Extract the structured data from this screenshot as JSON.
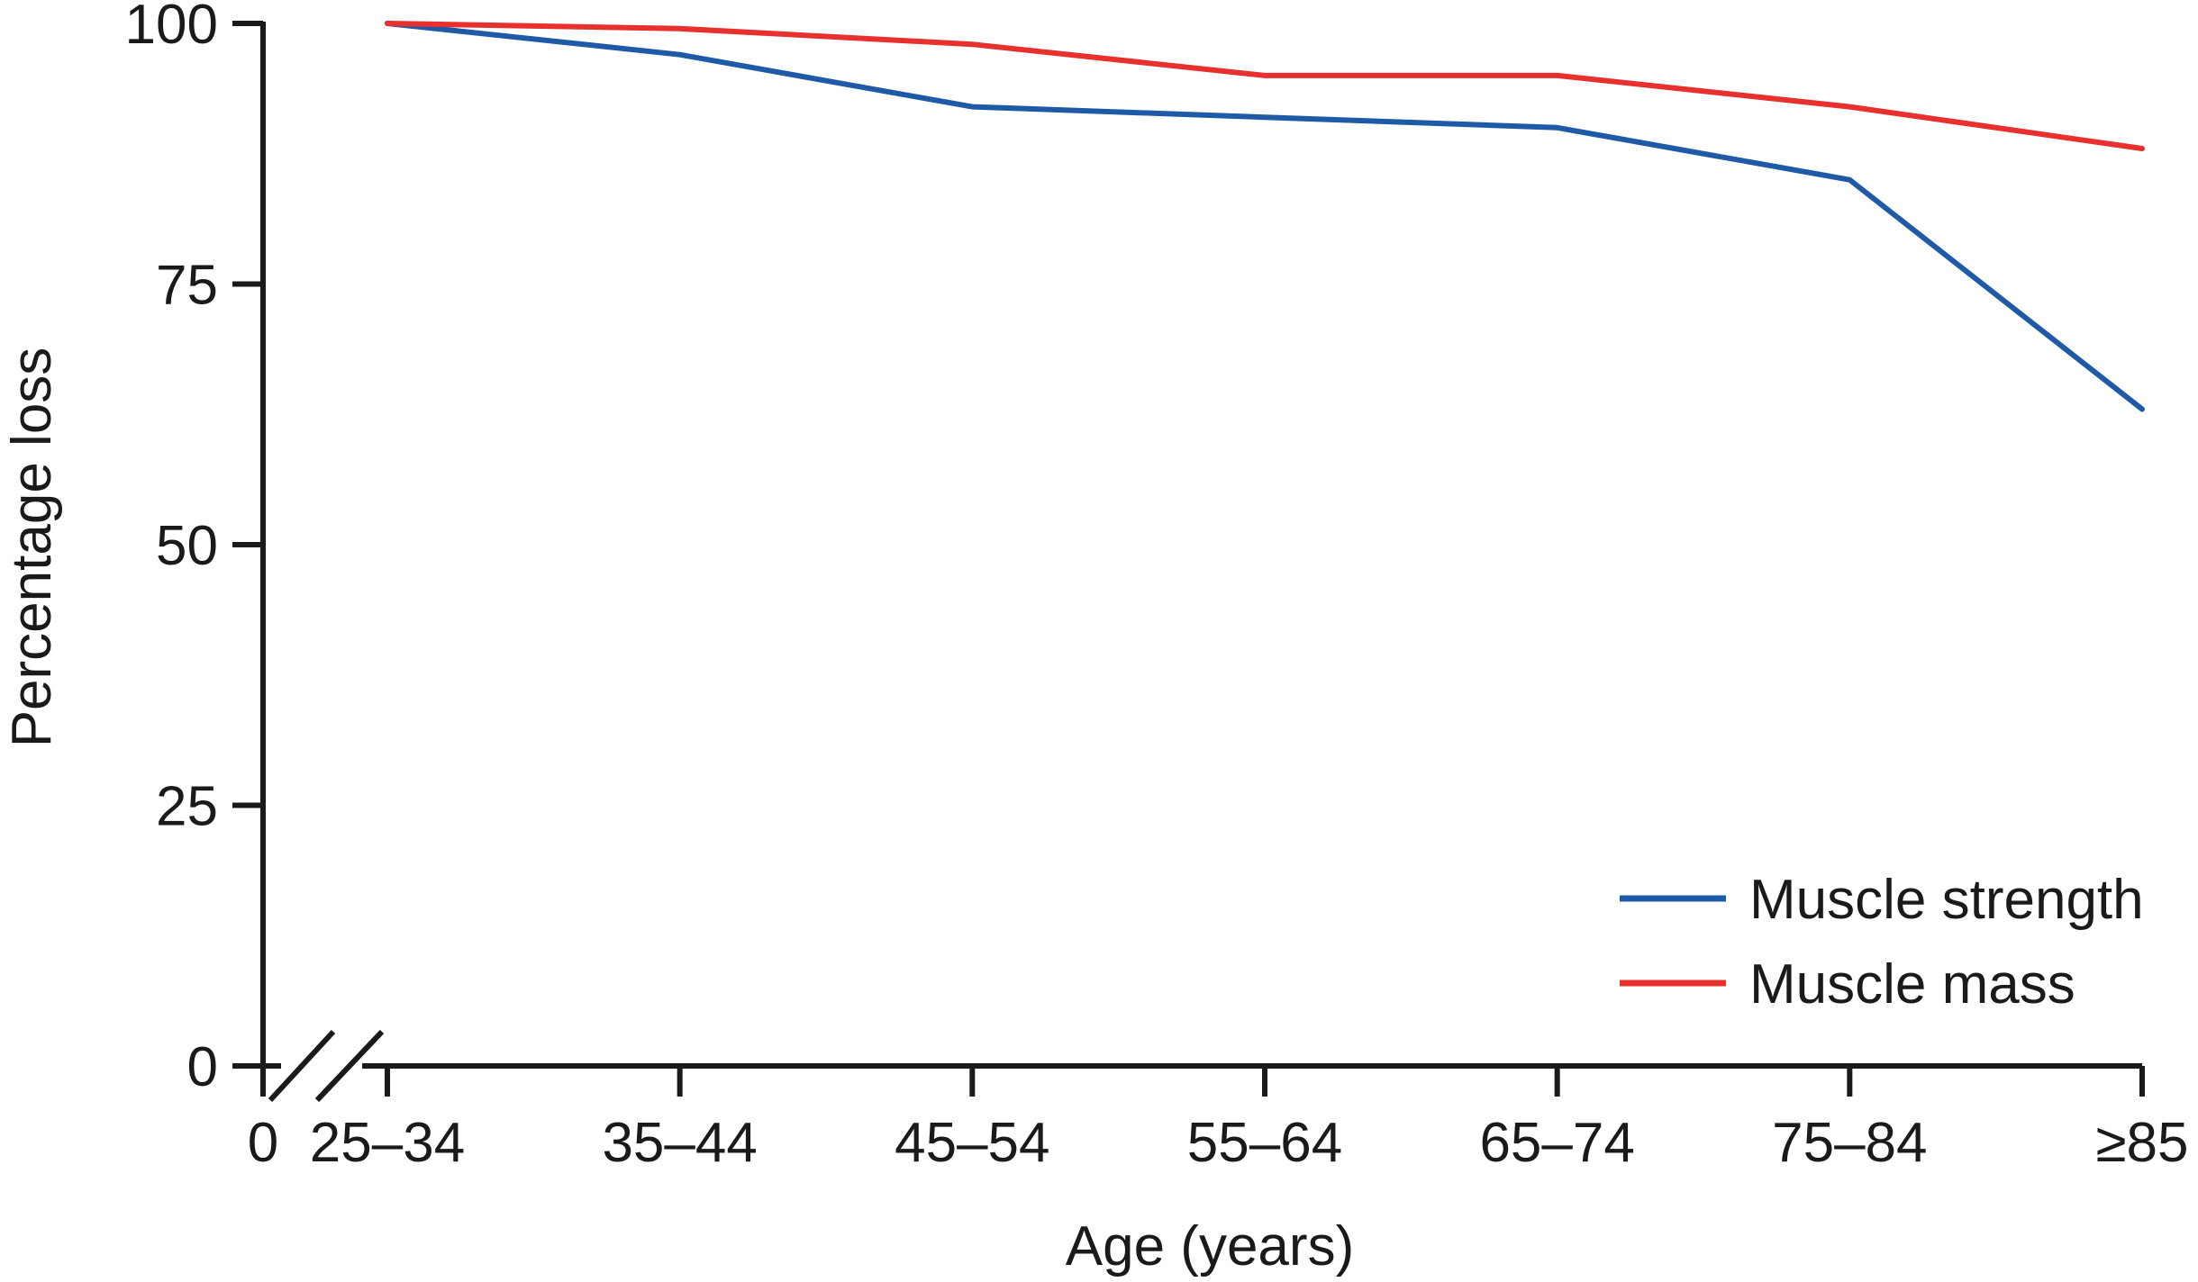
{
  "chart_data": {
    "type": "line",
    "title": "",
    "xlabel": "Age (years)",
    "ylabel": "Percentage loss",
    "x_origin_label": "0",
    "categories": [
      "25–34",
      "35–44",
      "45–54",
      "55–64",
      "65–74",
      "75–84",
      "≥85"
    ],
    "yticks": [
      0,
      25,
      50,
      75,
      100
    ],
    "ylim": [
      0,
      100
    ],
    "axis_break": true,
    "grid": false,
    "legend_position": "bottom-right",
    "series": [
      {
        "name": "Muscle strength",
        "color": "#1f5aa6",
        "values": [
          100,
          97,
          92,
          91,
          90,
          85,
          63
        ]
      },
      {
        "name": "Muscle mass",
        "color": "#e8302f",
        "values": [
          100,
          99.5,
          98,
          95,
          95,
          92,
          88
        ]
      }
    ]
  }
}
